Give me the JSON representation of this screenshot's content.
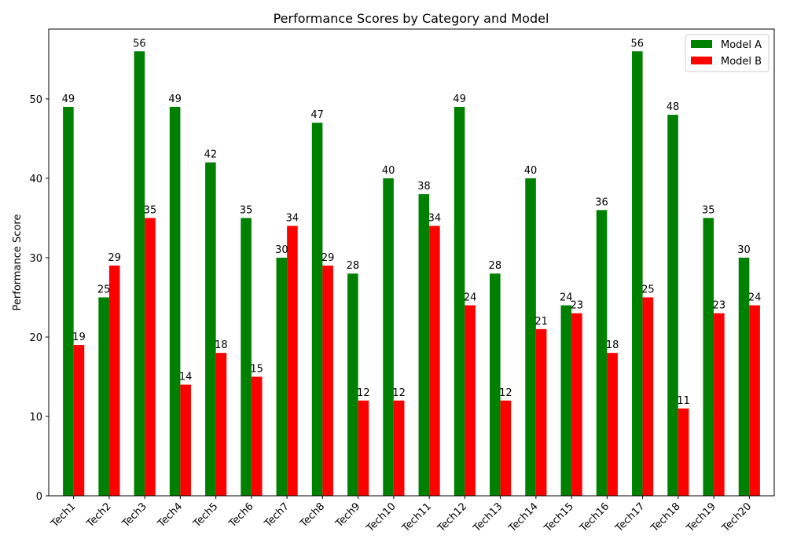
{
  "chart_data": {
    "type": "bar",
    "title": "Performance Scores by Category and Model",
    "xlabel": "",
    "ylabel": "Performance Score",
    "categories": [
      "Tech1",
      "Tech2",
      "Tech3",
      "Tech4",
      "Tech5",
      "Tech6",
      "Tech7",
      "Tech8",
      "Tech9",
      "Tech10",
      "Tech11",
      "Tech12",
      "Tech13",
      "Tech14",
      "Tech15",
      "Tech16",
      "Tech17",
      "Tech18",
      "Tech19",
      "Tech20"
    ],
    "series": [
      {
        "name": "Model A",
        "color": "#008000",
        "values": [
          49,
          25,
          56,
          49,
          42,
          35,
          30,
          47,
          28,
          40,
          38,
          49,
          28,
          40,
          24,
          36,
          56,
          48,
          35,
          30
        ]
      },
      {
        "name": "Model B",
        "color": "#ff0000",
        "values": [
          19,
          29,
          35,
          14,
          18,
          15,
          34,
          29,
          12,
          12,
          34,
          24,
          12,
          21,
          23,
          18,
          25,
          11,
          23,
          24
        ]
      }
    ],
    "ylim": [
      0,
      58.8
    ],
    "yticks": [
      0,
      10,
      20,
      30,
      40,
      50
    ],
    "grid": false,
    "legend_position": "top-right"
  }
}
